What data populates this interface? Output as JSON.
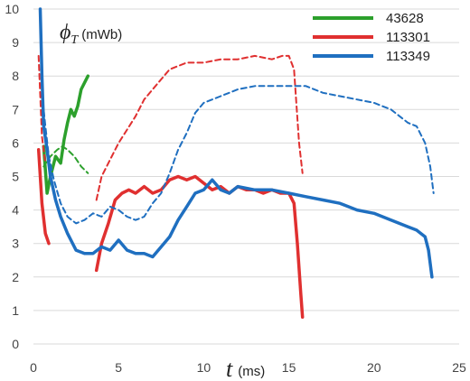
{
  "chart_data": {
    "type": "line",
    "ylabel": {
      "symbol": "ϕ",
      "subscript": "T",
      "unit": "(mWb)"
    },
    "xlabel": {
      "symbol": "t",
      "unit": "(ms)"
    },
    "xlim": [
      0,
      25
    ],
    "ylim": [
      0,
      10
    ],
    "x_ticks": [
      "0",
      "5",
      "10",
      "15",
      "20",
      "25"
    ],
    "y_ticks": [
      "0",
      "1",
      "2",
      "3",
      "4",
      "5",
      "6",
      "7",
      "8",
      "9",
      "10"
    ],
    "grid": "horizontal",
    "legend_position": "top-right",
    "series": [
      {
        "name": "43628",
        "color": "#2ca02c",
        "style": "solid",
        "points": [
          [
            0.6,
            5.9
          ],
          [
            0.8,
            4.5
          ],
          [
            1.0,
            5.0
          ],
          [
            1.3,
            5.6
          ],
          [
            1.6,
            5.4
          ],
          [
            1.8,
            6.1
          ],
          [
            2.0,
            6.6
          ],
          [
            2.2,
            7.0
          ],
          [
            2.4,
            6.8
          ],
          [
            2.6,
            7.1
          ],
          [
            2.8,
            7.6
          ],
          [
            3.2,
            8.0
          ]
        ]
      },
      {
        "name": "43628",
        "color": "#2ca02c",
        "style": "dashed",
        "points": [
          [
            0.6,
            5.3
          ],
          [
            1.0,
            5.6
          ],
          [
            1.4,
            5.8
          ],
          [
            1.7,
            5.9
          ],
          [
            2.0,
            5.8
          ],
          [
            2.4,
            5.6
          ],
          [
            2.8,
            5.3
          ],
          [
            3.2,
            5.1
          ]
        ]
      },
      {
        "name": "113301",
        "color": "#e03030",
        "style": "solid",
        "points": [
          [
            0.3,
            5.8
          ],
          [
            0.5,
            4.2
          ],
          [
            0.7,
            3.3
          ],
          [
            0.9,
            3.0
          ]
        ]
      },
      {
        "name": "113301",
        "color": "#e03030",
        "style": "solid",
        "points": [
          [
            3.7,
            2.2
          ],
          [
            4.0,
            3.0
          ],
          [
            4.4,
            3.6
          ],
          [
            4.8,
            4.3
          ],
          [
            5.2,
            4.5
          ],
          [
            5.6,
            4.6
          ],
          [
            6.0,
            4.5
          ],
          [
            6.5,
            4.7
          ],
          [
            7.0,
            4.5
          ],
          [
            7.5,
            4.6
          ],
          [
            8.0,
            4.9
          ],
          [
            8.5,
            5.0
          ],
          [
            9.0,
            4.9
          ],
          [
            9.5,
            5.0
          ],
          [
            10.0,
            4.8
          ],
          [
            10.5,
            4.6
          ],
          [
            11.0,
            4.7
          ],
          [
            11.5,
            4.5
          ],
          [
            12.0,
            4.7
          ],
          [
            12.5,
            4.6
          ],
          [
            13.0,
            4.6
          ],
          [
            13.5,
            4.5
          ],
          [
            14.0,
            4.6
          ],
          [
            14.5,
            4.5
          ],
          [
            15.0,
            4.5
          ],
          [
            15.3,
            4.2
          ],
          [
            15.5,
            3.0
          ],
          [
            15.7,
            1.5
          ],
          [
            15.8,
            0.8
          ]
        ]
      },
      {
        "name": "113301",
        "color": "#e03030",
        "style": "dashed",
        "points": [
          [
            0.3,
            8.6
          ],
          [
            0.5,
            6.2
          ],
          [
            0.7,
            5.4
          ]
        ]
      },
      {
        "name": "113301",
        "color": "#e03030",
        "style": "dashed",
        "points": [
          [
            3.7,
            4.3
          ],
          [
            4.0,
            5.0
          ],
          [
            4.5,
            5.5
          ],
          [
            5.0,
            6.0
          ],
          [
            5.5,
            6.4
          ],
          [
            6.0,
            6.8
          ],
          [
            6.5,
            7.3
          ],
          [
            7.0,
            7.6
          ],
          [
            7.5,
            7.9
          ],
          [
            8.0,
            8.2
          ],
          [
            9.0,
            8.4
          ],
          [
            10.0,
            8.4
          ],
          [
            11.0,
            8.5
          ],
          [
            12.0,
            8.5
          ],
          [
            13.0,
            8.6
          ],
          [
            14.0,
            8.5
          ],
          [
            14.6,
            8.6
          ],
          [
            15.0,
            8.6
          ],
          [
            15.3,
            8.2
          ],
          [
            15.6,
            6.0
          ],
          [
            15.8,
            5.1
          ]
        ]
      },
      {
        "name": "113349",
        "color": "#1f6fc0",
        "style": "solid",
        "points": [
          [
            0.4,
            10.0
          ],
          [
            0.5,
            8.0
          ],
          [
            0.6,
            6.5
          ],
          [
            0.8,
            5.8
          ],
          [
            1.0,
            5.0
          ],
          [
            1.3,
            4.3
          ],
          [
            1.6,
            3.8
          ],
          [
            2.0,
            3.3
          ],
          [
            2.5,
            2.8
          ],
          [
            3.0,
            2.7
          ],
          [
            3.5,
            2.7
          ],
          [
            4.0,
            2.9
          ],
          [
            4.5,
            2.8
          ],
          [
            5.0,
            3.1
          ],
          [
            5.5,
            2.8
          ],
          [
            6.0,
            2.7
          ],
          [
            6.5,
            2.7
          ],
          [
            7.0,
            2.6
          ],
          [
            7.5,
            2.9
          ],
          [
            8.0,
            3.2
          ],
          [
            8.5,
            3.7
          ],
          [
            9.0,
            4.1
          ],
          [
            9.5,
            4.5
          ],
          [
            10.0,
            4.6
          ],
          [
            10.5,
            4.9
          ],
          [
            11.0,
            4.6
          ],
          [
            11.5,
            4.5
          ],
          [
            12.0,
            4.7
          ],
          [
            13.0,
            4.6
          ],
          [
            14.0,
            4.6
          ],
          [
            15.0,
            4.5
          ],
          [
            16.0,
            4.4
          ],
          [
            17.0,
            4.3
          ],
          [
            18.0,
            4.2
          ],
          [
            19.0,
            4.0
          ],
          [
            20.0,
            3.9
          ],
          [
            21.0,
            3.7
          ],
          [
            22.0,
            3.5
          ],
          [
            22.5,
            3.4
          ],
          [
            23.0,
            3.2
          ],
          [
            23.2,
            2.8
          ],
          [
            23.4,
            2.0
          ]
        ]
      },
      {
        "name": "113349",
        "color": "#1f6fc0",
        "style": "dashed",
        "points": [
          [
            0.5,
            7.5
          ],
          [
            0.7,
            6.5
          ],
          [
            0.9,
            5.6
          ],
          [
            1.2,
            4.9
          ],
          [
            1.6,
            4.2
          ],
          [
            2.0,
            3.8
          ],
          [
            2.5,
            3.6
          ],
          [
            3.0,
            3.7
          ],
          [
            3.5,
            3.9
          ],
          [
            4.0,
            3.8
          ],
          [
            4.5,
            4.1
          ],
          [
            5.0,
            4.0
          ],
          [
            5.5,
            3.8
          ],
          [
            6.0,
            3.7
          ],
          [
            6.5,
            3.8
          ],
          [
            7.0,
            4.2
          ],
          [
            7.5,
            4.5
          ],
          [
            8.0,
            5.1
          ],
          [
            8.5,
            5.8
          ],
          [
            9.0,
            6.3
          ],
          [
            9.5,
            6.9
          ],
          [
            10.0,
            7.2
          ],
          [
            10.5,
            7.3
          ],
          [
            11.0,
            7.4
          ],
          [
            12.0,
            7.6
          ],
          [
            13.0,
            7.7
          ],
          [
            14.0,
            7.7
          ],
          [
            15.0,
            7.7
          ],
          [
            16.0,
            7.7
          ],
          [
            17.0,
            7.5
          ],
          [
            18.0,
            7.4
          ],
          [
            19.0,
            7.3
          ],
          [
            20.0,
            7.2
          ],
          [
            21.0,
            7.0
          ],
          [
            22.0,
            6.6
          ],
          [
            22.5,
            6.5
          ],
          [
            23.0,
            6.0
          ],
          [
            23.3,
            5.3
          ],
          [
            23.5,
            4.5
          ]
        ]
      }
    ]
  }
}
